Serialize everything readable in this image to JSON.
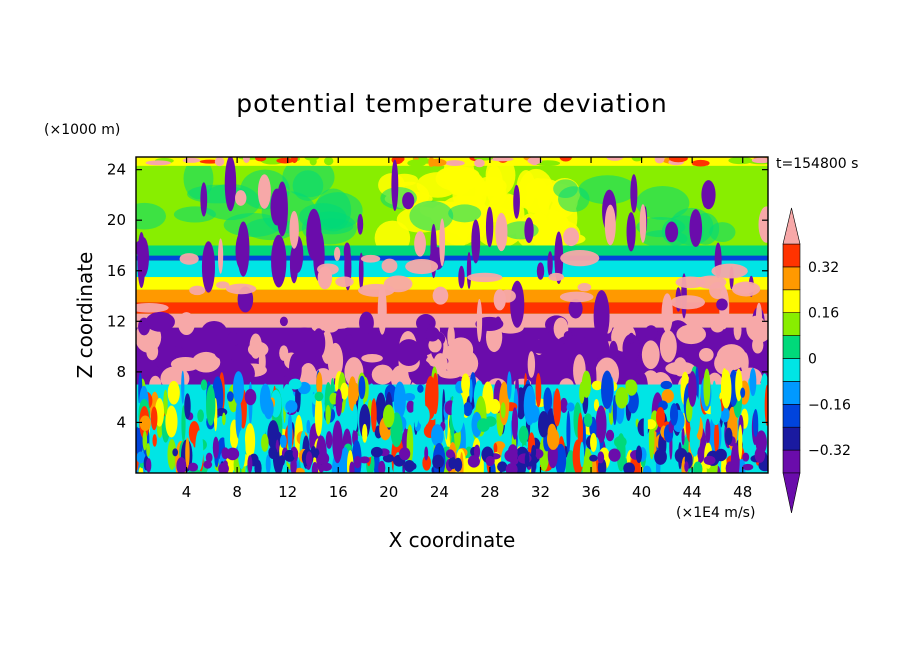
{
  "chart_data": {
    "type": "heatmap",
    "title": "potential temperature deviation",
    "xlabel": "X coordinate",
    "ylabel": "Z coordinate",
    "x_unit": "(×1E4 m/s)",
    "y_unit": "(×1000 m)",
    "time_label": "t=154800 s",
    "xlim": [
      0,
      50
    ],
    "ylim": [
      0,
      25
    ],
    "x_ticks": [
      4,
      8,
      12,
      16,
      20,
      24,
      28,
      32,
      36,
      40,
      44,
      48
    ],
    "y_ticks": [
      4,
      8,
      12,
      16,
      20,
      24
    ],
    "colorbar": {
      "levels": [
        -0.4,
        -0.32,
        -0.24,
        -0.16,
        -0.08,
        0,
        0.08,
        0.16,
        0.24,
        0.32,
        0.4
      ],
      "colors": [
        "#6a0cab",
        "#1a1aa0",
        "#0044dd",
        "#0099ff",
        "#00e5e5",
        "#00d97a",
        "#88ee00",
        "#ffff00",
        "#ff9900",
        "#ff3300",
        "#f7a8a8"
      ],
      "under_color": "#6a0cab",
      "over_color": "#f7a8a8",
      "tick_labels": [
        "0.32",
        "0.16",
        "0",
        "−0.16",
        "−0.32"
      ],
      "tick_values": [
        0.32,
        0.16,
        0,
        -0.16,
        -0.32
      ]
    },
    "vertical_profile": [
      {
        "z_range": [
          24.3,
          25
        ],
        "band": "mixed yellow / orange / green / pink"
      },
      {
        "z_range": [
          18,
          24.3
        ],
        "value": 0.05,
        "band": "green with yellow patches near x=20–34"
      },
      {
        "z_range": [
          17.2,
          18
        ],
        "value": 0.0,
        "band": "green-cyan"
      },
      {
        "z_range": [
          16.8,
          17.2
        ],
        "value": -0.14,
        "band": "blue"
      },
      {
        "z_range": [
          15.5,
          16.8
        ],
        "value": -0.09,
        "band": "cyan"
      },
      {
        "z_range": [
          14.5,
          15.5
        ],
        "value": 0.14,
        "band": "yellow"
      },
      {
        "z_range": [
          13.5,
          14.5
        ],
        "value": 0.26,
        "band": "orange"
      },
      {
        "z_range": [
          12.6,
          13.5
        ],
        "value": 0.34,
        "band": "red"
      },
      {
        "z_range": [
          7,
          12.6
        ],
        "value": -0.4,
        "band": "purple and pink plumes"
      },
      {
        "z_range": [
          0,
          7
        ],
        "value": 0.0,
        "band": "turbulent mixture of all levels"
      }
    ]
  }
}
